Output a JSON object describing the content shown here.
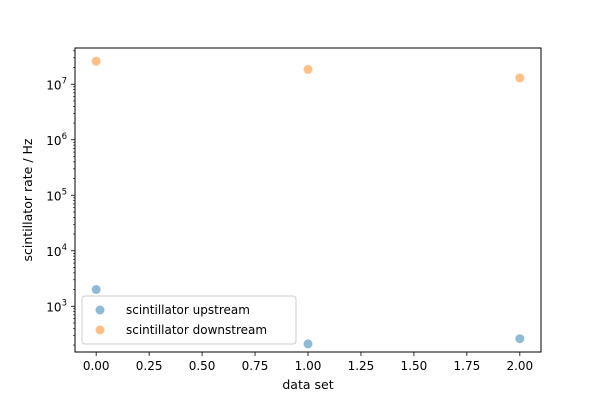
{
  "chart_data": {
    "type": "scatter",
    "title": "",
    "xlabel": "data set",
    "ylabel": "scintillator rate / Hz",
    "yscale": "log",
    "xlim": [
      -0.1,
      2.1
    ],
    "ylim": [
      150,
      45000000
    ],
    "xticks": [
      0.0,
      0.25,
      0.5,
      0.75,
      1.0,
      1.25,
      1.5,
      1.75,
      2.0
    ],
    "xtick_labels": [
      "0.00",
      "0.25",
      "0.50",
      "0.75",
      "1.00",
      "1.25",
      "1.50",
      "1.75",
      "2.00"
    ],
    "yticks": [
      {
        "value": 1000,
        "base": "10",
        "exp": "3"
      },
      {
        "value": 10000,
        "base": "10",
        "exp": "4"
      },
      {
        "value": 100000,
        "base": "10",
        "exp": "5"
      },
      {
        "value": 1000000,
        "base": "10",
        "exp": "6"
      },
      {
        "value": 10000000,
        "base": "10",
        "exp": "7"
      }
    ],
    "grid": false,
    "legend_position": "lower-left",
    "series": [
      {
        "name": "scintillator upstream",
        "color": "#1f77b4",
        "x": [
          0,
          1,
          2
        ],
        "y": [
          2000,
          210,
          260
        ]
      },
      {
        "name": "scintillator downstream",
        "color": "#ff7f0e",
        "x": [
          0,
          1,
          2
        ],
        "y": [
          26000000,
          18500000,
          13000000
        ]
      }
    ]
  }
}
